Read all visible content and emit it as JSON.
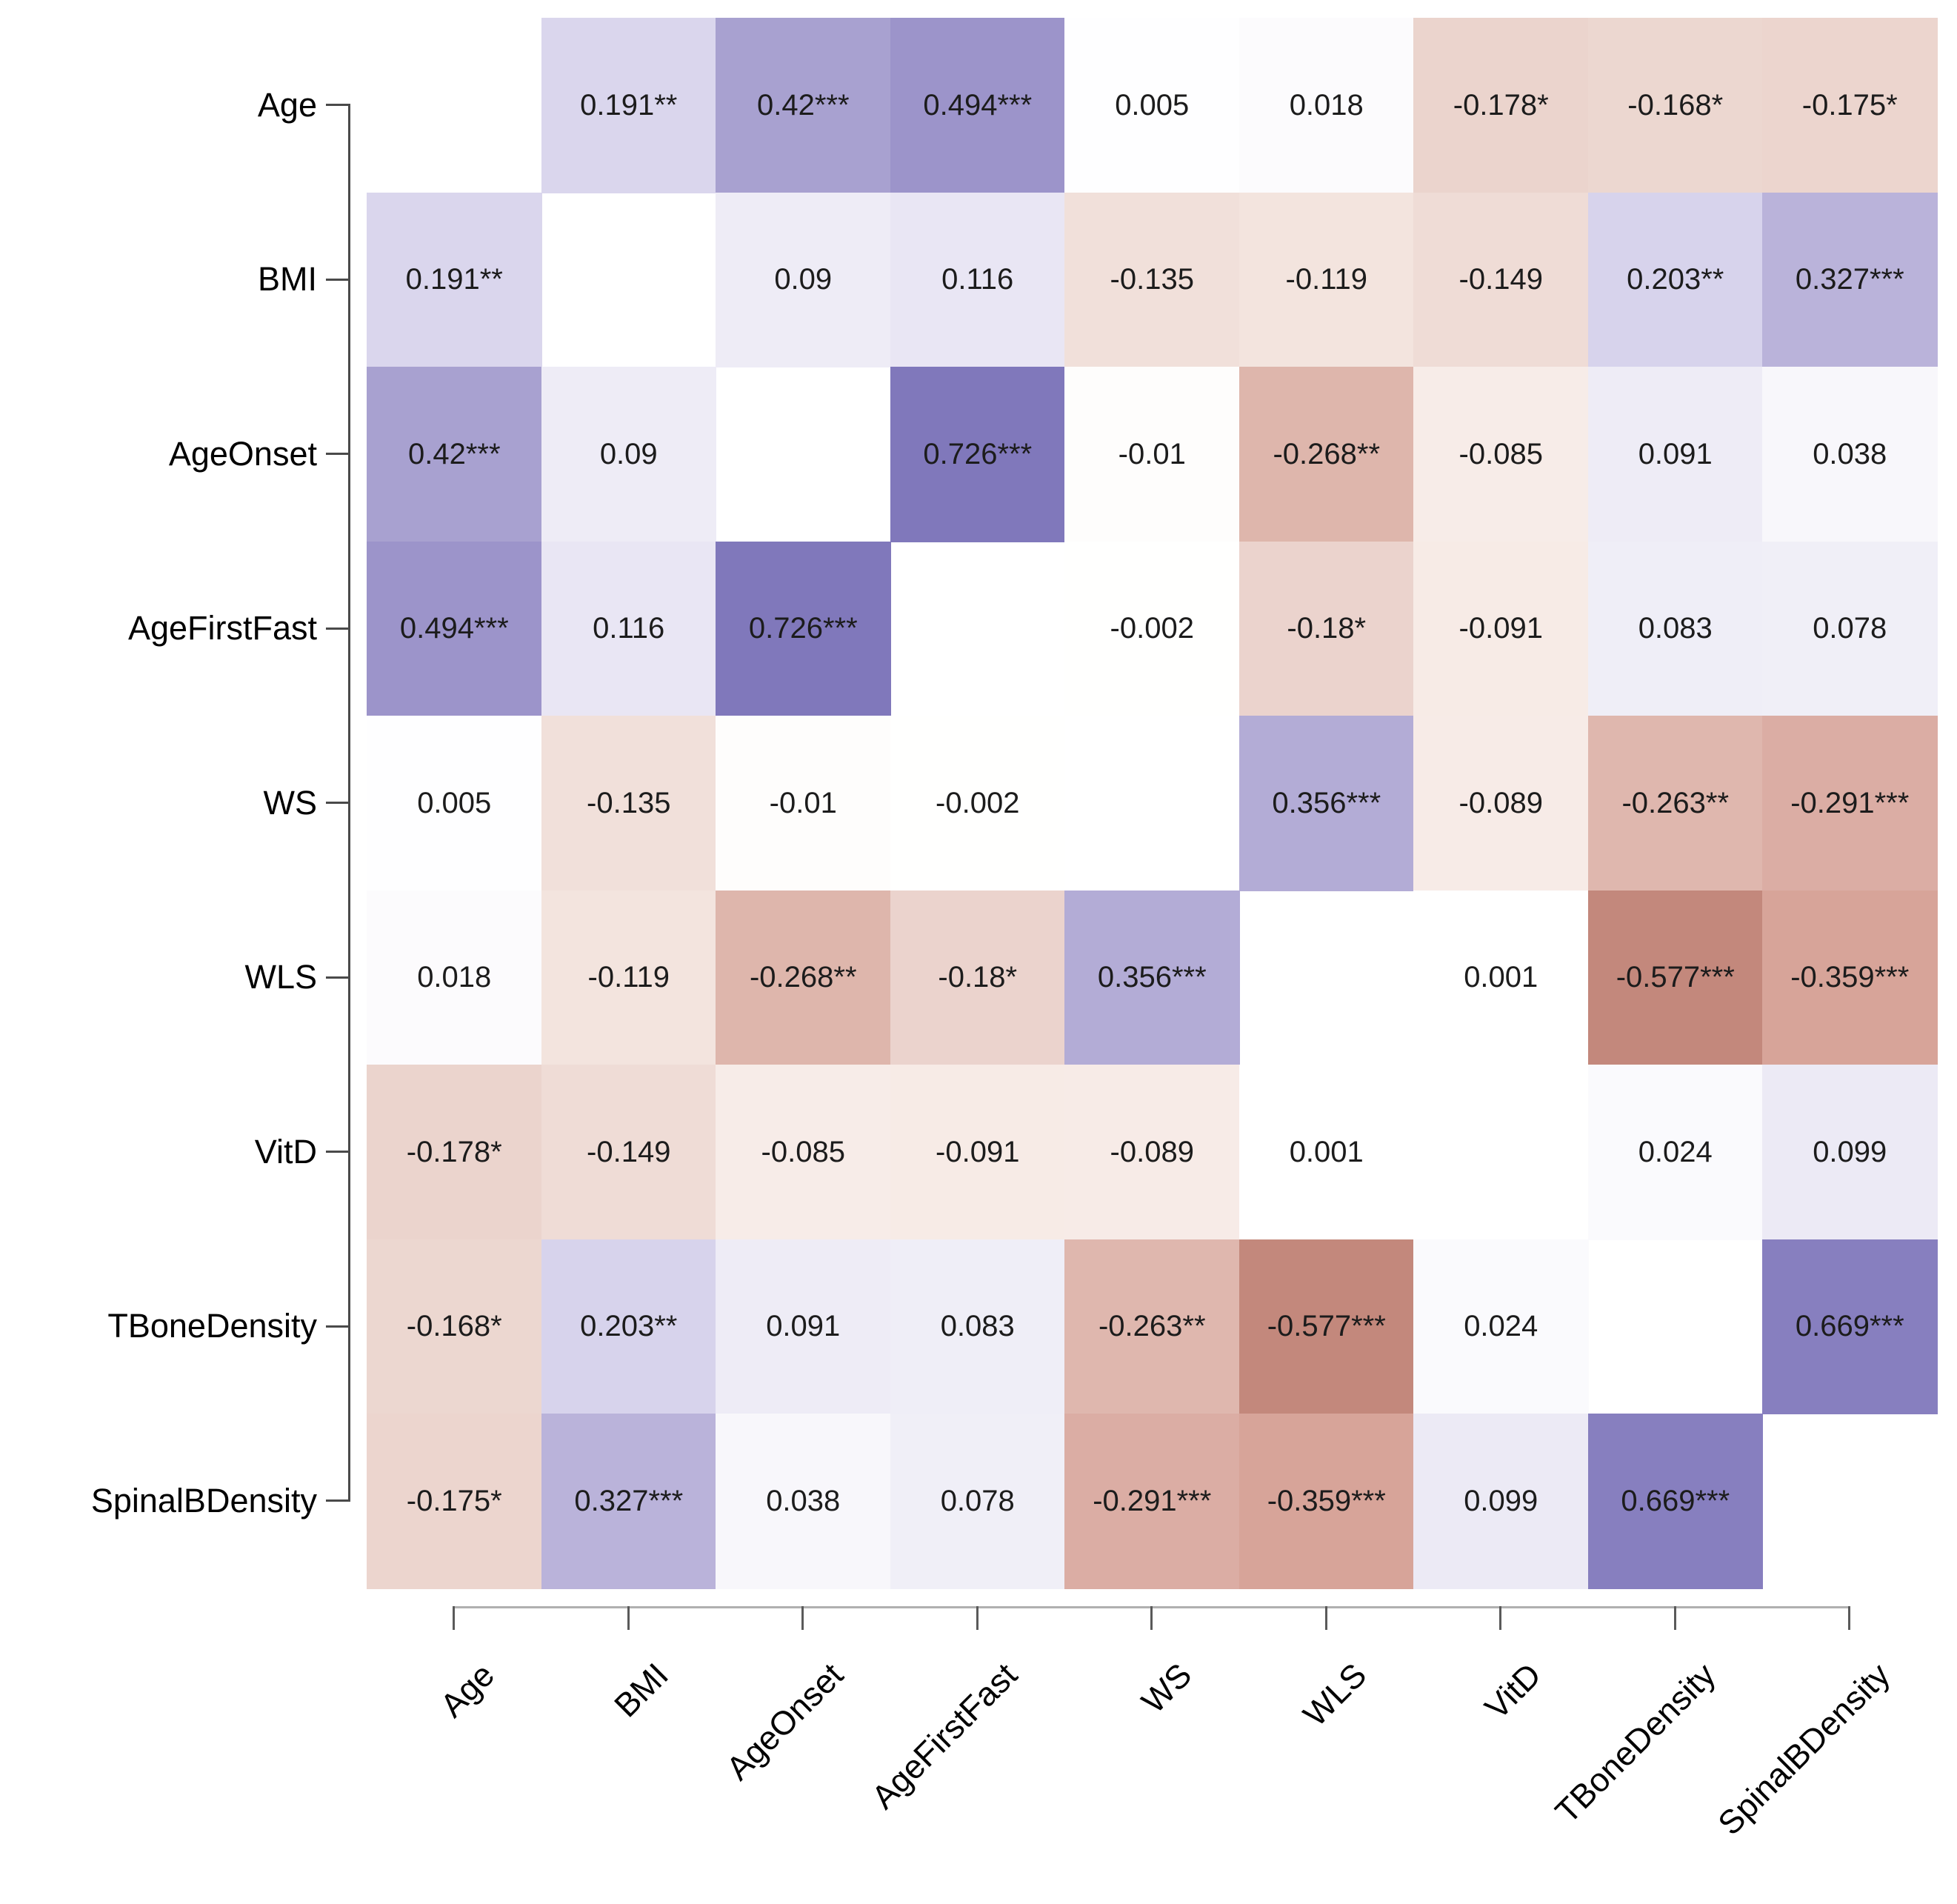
{
  "chart_data": {
    "type": "heatmap",
    "title": "",
    "xlabel": "",
    "ylabel": "",
    "legend_position": "none",
    "grid": false,
    "diagonal": "blank",
    "value_range": [
      -1,
      1
    ],
    "variables": [
      "Age",
      "BMI",
      "AgeOnset",
      "AgeFirstFast",
      "WS",
      "WLS",
      "VitD",
      "TBoneDensity",
      "SpinalBDensity"
    ],
    "labels": [
      [
        null,
        "0.191**",
        "0.42***",
        "0.494***",
        "0.005",
        "0.018",
        "-0.178*",
        "-0.168*",
        "-0.175*"
      ],
      [
        "0.191**",
        null,
        "0.09",
        "0.116",
        "-0.135",
        "-0.119",
        "-0.149",
        "0.203**",
        "0.327***"
      ],
      [
        "0.42***",
        "0.09",
        null,
        "0.726***",
        "-0.01",
        "-0.268**",
        "-0.085",
        "0.091",
        "0.038"
      ],
      [
        "0.494***",
        "0.116",
        "0.726***",
        null,
        "-0.002",
        "-0.18*",
        "-0.091",
        "0.083",
        "0.078"
      ],
      [
        "0.005",
        "-0.135",
        "-0.01",
        "-0.002",
        null,
        "0.356***",
        "-0.089",
        "-0.263**",
        "-0.291***"
      ],
      [
        "0.018",
        "-0.119",
        "-0.268**",
        "-0.18*",
        "0.356***",
        null,
        "0.001",
        "-0.577***",
        "-0.359***"
      ],
      [
        "-0.178*",
        "-0.149",
        "-0.085",
        "-0.091",
        "-0.089",
        "0.001",
        null,
        "0.024",
        "0.099"
      ],
      [
        "-0.168*",
        "0.203**",
        "0.091",
        "0.083",
        "-0.263**",
        "-0.577***",
        "0.024",
        null,
        "0.669***"
      ],
      [
        "-0.175*",
        "0.327***",
        "0.038",
        "0.078",
        "-0.291***",
        "-0.359***",
        "0.099",
        "0.669***",
        null
      ]
    ],
    "values": [
      [
        null,
        0.191,
        0.42,
        0.494,
        0.005,
        0.018,
        -0.178,
        -0.168,
        -0.175
      ],
      [
        0.191,
        null,
        0.09,
        0.116,
        -0.135,
        -0.119,
        -0.149,
        0.203,
        0.327
      ],
      [
        0.42,
        0.09,
        null,
        0.726,
        -0.01,
        -0.268,
        -0.085,
        0.091,
        0.038
      ],
      [
        0.494,
        0.116,
        0.726,
        null,
        -0.002,
        -0.18,
        -0.091,
        0.083,
        0.078
      ],
      [
        0.005,
        -0.135,
        -0.01,
        -0.002,
        null,
        0.356,
        -0.089,
        -0.263,
        -0.291
      ],
      [
        0.018,
        -0.119,
        -0.268,
        -0.18,
        0.356,
        null,
        0.001,
        -0.577,
        -0.359
      ],
      [
        -0.178,
        -0.149,
        -0.085,
        -0.091,
        -0.089,
        0.001,
        null,
        0.024,
        0.099
      ],
      [
        -0.168,
        0.203,
        0.091,
        0.083,
        -0.263,
        -0.577,
        0.024,
        null,
        0.669
      ],
      [
        -0.175,
        0.327,
        0.038,
        0.078,
        -0.291,
        -0.359,
        0.099,
        0.669,
        null
      ]
    ],
    "colors": {
      "positive_stops": [
        [
          0,
          "#ffffff"
        ],
        [
          0.1,
          "#eceaf5"
        ],
        [
          0.2,
          "#d8d4ec"
        ],
        [
          0.35,
          "#b4add7"
        ],
        [
          0.5,
          "#9b93c9"
        ],
        [
          0.75,
          "#7d75ba"
        ],
        [
          1,
          "#5a50a0"
        ]
      ],
      "negative_stops": [
        [
          0,
          "#ffffff"
        ],
        [
          0.1,
          "#f6e9e4"
        ],
        [
          0.2,
          "#e8cec7"
        ],
        [
          0.3,
          "#daaaa0"
        ],
        [
          0.45,
          "#d29b8f"
        ],
        [
          0.6,
          "#c08578"
        ],
        [
          1,
          "#96503f"
        ]
      ],
      "cell_text": "#1c1c1c",
      "axis_text": "#000000",
      "y_axis_line": "#4a4a4a",
      "x_axis_line": "#b0b0b0",
      "tick": "#5a5a5a",
      "background": "#ffffff"
    }
  }
}
